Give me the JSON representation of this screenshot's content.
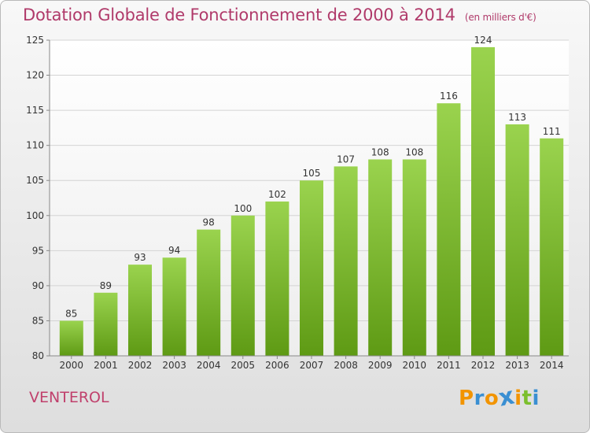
{
  "chart_data": {
    "type": "bar",
    "title": "Dotation Globale de Fonctionnement de 2000 à 2014",
    "subtitle": "(en milliers d'€)",
    "categories": [
      "2000",
      "2001",
      "2002",
      "2003",
      "2004",
      "2005",
      "2006",
      "2007",
      "2008",
      "2009",
      "2010",
      "2011",
      "2012",
      "2013",
      "2014"
    ],
    "values": [
      85,
      89,
      93,
      94,
      98,
      100,
      102,
      105,
      107,
      108,
      108,
      116,
      124,
      113,
      111
    ],
    "ylim": [
      80,
      125
    ],
    "yticks": [
      80,
      85,
      90,
      95,
      100,
      105,
      110,
      115,
      120,
      125
    ],
    "grid": true,
    "bar_color": "#7cbf2e"
  },
  "footer": {
    "commune": "VENTEROL",
    "logo_letters": [
      "P",
      "r",
      "o",
      "x",
      "i",
      "t",
      "i"
    ],
    "logo_colors": [
      "#f29400",
      "#3a8fd2",
      "#f29400",
      "#3a8fd2",
      "#f29400",
      "#7cbf2e",
      "#3a8fd2"
    ]
  }
}
